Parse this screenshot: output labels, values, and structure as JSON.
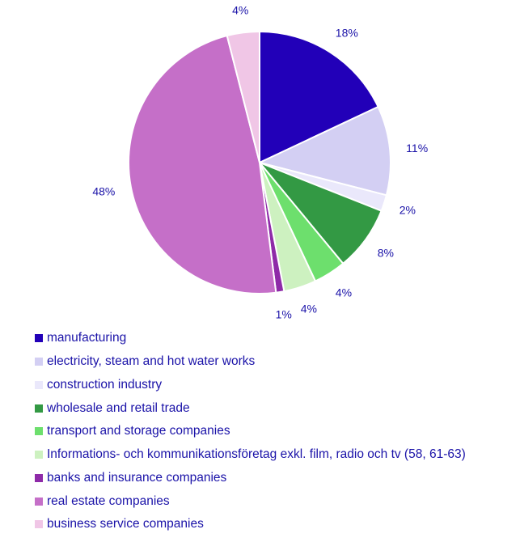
{
  "chart_data": {
    "type": "pie",
    "slices": [
      {
        "label": "manufacturing",
        "value": 18,
        "display": "18%",
        "color": "#2200b8"
      },
      {
        "label": "electricity, steam and hot water works",
        "value": 11,
        "display": "11%",
        "color": "#d3cff3"
      },
      {
        "label": "construction industry",
        "value": 2,
        "display": "2%",
        "color": "#eae8fb"
      },
      {
        "label": "wholesale and retail trade",
        "value": 8,
        "display": "8%",
        "color": "#339944"
      },
      {
        "label": "transport and storage companies",
        "value": 4,
        "display": "4%",
        "color": "#6ddf6d"
      },
      {
        "label": "Informations- och kommunikationsföretag  exkl. film, radio och tv (58, 61-63)",
        "value": 4,
        "display": "4%",
        "color": "#cdf1c0"
      },
      {
        "label": "banks and insurance companies",
        "value": 1,
        "display": "1%",
        "color": "#8e2aa8"
      },
      {
        "label": "real estate companies",
        "value": 48,
        "display": "48%",
        "color": "#c56fc8"
      },
      {
        "label": "business service companies",
        "value": 4,
        "display": "4%",
        "color": "#f0c6e6"
      }
    ]
  }
}
